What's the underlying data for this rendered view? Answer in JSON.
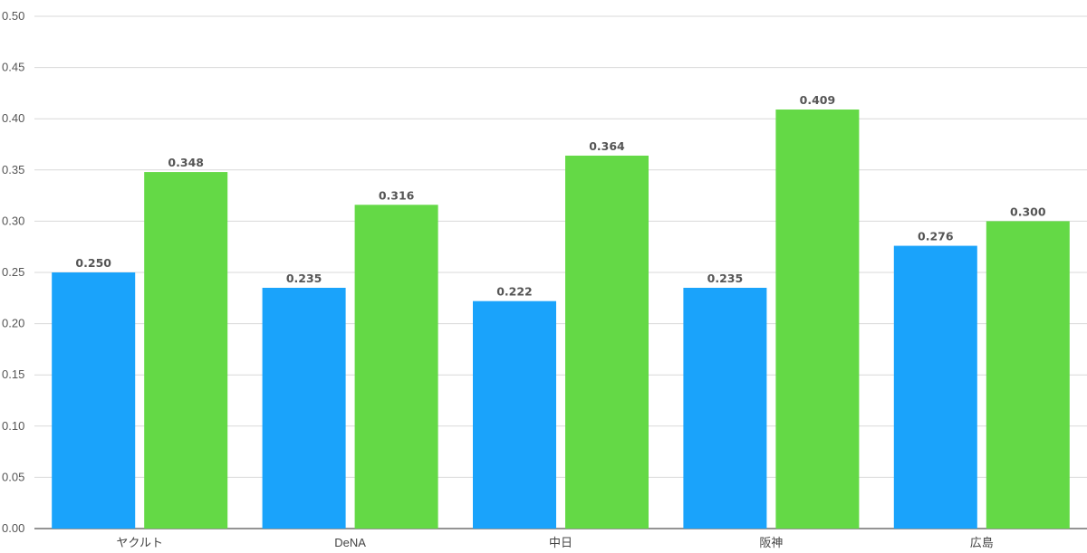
{
  "chart_data": {
    "type": "bar",
    "categories": [
      "ヤクルト",
      "DeNA",
      "中日",
      "阪神",
      "広島"
    ],
    "series": [
      {
        "color": "#1aa3fb",
        "values": [
          0.25,
          0.235,
          0.222,
          0.235,
          0.276
        ],
        "labels": [
          "0.250",
          "0.235",
          "0.222",
          "0.235",
          "0.276"
        ]
      },
      {
        "color": "#64d946",
        "values": [
          0.348,
          0.316,
          0.364,
          0.409,
          0.3
        ],
        "labels": [
          "0.348",
          "0.316",
          "0.364",
          "0.409",
          "0.300"
        ]
      }
    ],
    "ylim": [
      0,
      0.5
    ],
    "yticks": [
      "0.00",
      "0.05",
      "0.10",
      "0.15",
      "0.20",
      "0.25",
      "0.30",
      "0.35",
      "0.40",
      "0.45",
      "0.50"
    ],
    "grid": true,
    "title": "",
    "xlabel": "",
    "ylabel": ""
  }
}
